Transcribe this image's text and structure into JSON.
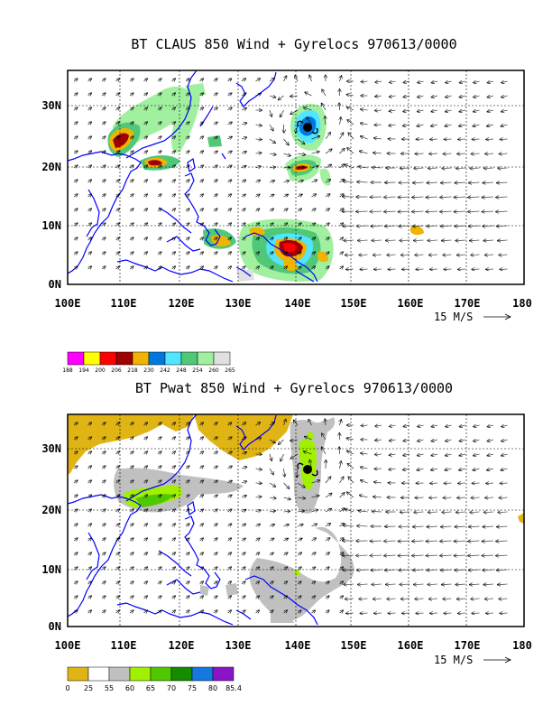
{
  "panels": [
    {
      "title": "BT CLAUS 850 Wind + Gyrelocs 970613/0000",
      "lat_labels": [
        "30N",
        "20N",
        "10N",
        "0N"
      ],
      "lon_labels": [
        "100E",
        "110E",
        "120E",
        "130E",
        "140E",
        "150E",
        "160E",
        "170E",
        "180"
      ],
      "reference_vector": "15 M/S",
      "colorbar": {
        "colors": [
          "#ff00ff",
          "#ffff00",
          "#ff0000",
          "#a00000",
          "#f0b400",
          "#0078e0",
          "#50e6ff",
          "#50c878",
          "#a0f0a0",
          "#e0e0e0"
        ],
        "labels": [
          "188",
          "194",
          "200",
          "206",
          "218",
          "230",
          "242",
          "248",
          "254",
          "260",
          "265"
        ]
      }
    },
    {
      "title": "BT Pwat 850 Wind + Gyrelocs 970613/0000",
      "lat_labels": [
        "30N",
        "20N",
        "10N",
        "0N"
      ],
      "lon_labels": [
        "100E",
        "110E",
        "120E",
        "130E",
        "140E",
        "150E",
        "160E",
        "170E",
        "180"
      ],
      "reference_vector": "15 M/S",
      "colorbar": {
        "colors": [
          "#e0b414",
          "#ffffff",
          "#c0c0c0",
          "#a0f000",
          "#50c800",
          "#148c00",
          "#1478e0",
          "#8c14c8"
        ],
        "labels": [
          "0",
          "25",
          "55",
          "60",
          "65",
          "70",
          "75",
          "80",
          "85.4"
        ]
      }
    }
  ]
}
